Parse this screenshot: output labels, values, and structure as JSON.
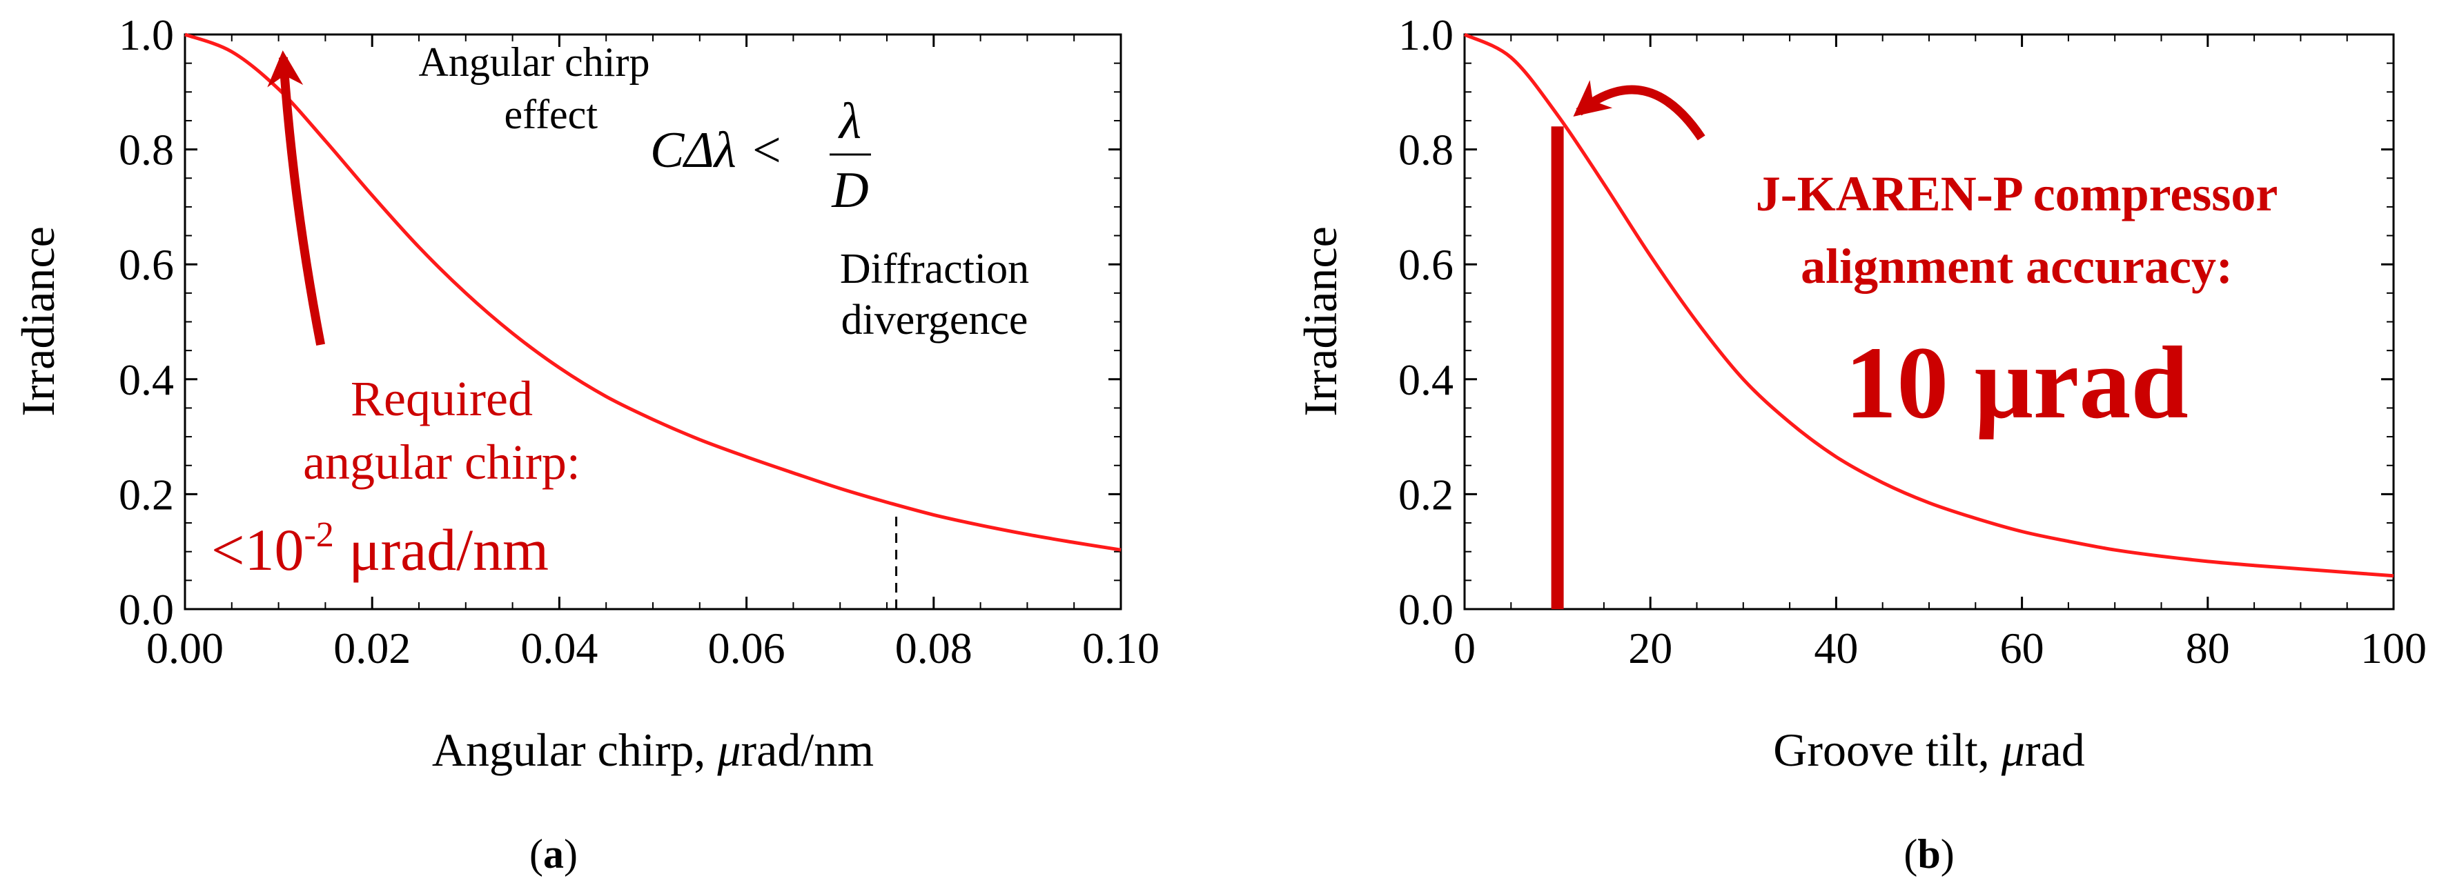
{
  "colors": {
    "curve": "#ff1a1a",
    "annotation": "#cc0000",
    "axis": "#000000"
  },
  "chart_data": [
    {
      "type": "line",
      "panel_label": "a",
      "title": "",
      "xlabel_prefix": "Angular chirp, ",
      "xlabel_symbol": "μ",
      "xlabel_suffix": "rad/nm",
      "ylabel": "Irradiance",
      "xlim": [
        0,
        0.1
      ],
      "ylim": [
        0,
        1
      ],
      "xticks": [
        0.0,
        0.02,
        0.04,
        0.06,
        0.08,
        0.1
      ],
      "xtick_labels": [
        "0.00",
        "0.02",
        "0.04",
        "0.06",
        "0.08",
        "0.10"
      ],
      "yticks": [
        0.0,
        0.2,
        0.4,
        0.6,
        0.8,
        1.0
      ],
      "ytick_labels": [
        "0.0",
        "0.2",
        "0.4",
        "0.6",
        "0.8",
        "1.0"
      ],
      "series": [
        {
          "name": "Irradiance vs angular chirp",
          "x": [
            0.0,
            0.005,
            0.01,
            0.015,
            0.02,
            0.025,
            0.03,
            0.035,
            0.04,
            0.045,
            0.05,
            0.055,
            0.06,
            0.065,
            0.07,
            0.075,
            0.08,
            0.085,
            0.09,
            0.095,
            0.1
          ],
          "y": [
            1.0,
            0.97,
            0.905,
            0.815,
            0.72,
            0.63,
            0.55,
            0.48,
            0.42,
            0.37,
            0.33,
            0.295,
            0.265,
            0.237,
            0.21,
            0.186,
            0.164,
            0.146,
            0.13,
            0.116,
            0.103
          ]
        }
      ],
      "marker_line": {
        "x": 0.076,
        "y_top": 0.165,
        "style": "dashed"
      },
      "arrow": {
        "from": [
          0.0145,
          0.46
        ],
        "to": [
          0.0105,
          0.96
        ]
      },
      "annotations": {
        "angular_chirp_effect_line1": "Angular chirp",
        "angular_chirp_effect_line2": "effect",
        "formula_left": "CΔλ <",
        "formula_numerator": "λ",
        "formula_denominator": "D",
        "diffraction_line1": "Diffraction",
        "diffraction_line2": "divergence",
        "required_line1": "Required",
        "required_line2": "angular chirp:",
        "required_value_prefix": "<10",
        "required_value_exp": "-2",
        "required_value_suffix": " μrad/nm"
      }
    },
    {
      "type": "line",
      "panel_label": "b",
      "title": "",
      "xlabel_prefix": "Groove tilt, ",
      "xlabel_symbol": "μ",
      "xlabel_suffix": "rad",
      "ylabel": "Irradiance",
      "xlim": [
        0,
        100
      ],
      "ylim": [
        0,
        1
      ],
      "xticks": [
        0,
        20,
        40,
        60,
        80,
        100
      ],
      "xtick_labels": [
        "0",
        "20",
        "40",
        "60",
        "80",
        "100"
      ],
      "yticks": [
        0.0,
        0.2,
        0.4,
        0.6,
        0.8,
        1.0
      ],
      "ytick_labels": [
        "0.0",
        "0.2",
        "0.4",
        "0.6",
        "0.8",
        "1.0"
      ],
      "series": [
        {
          "name": "Irradiance vs groove tilt",
          "x": [
            0,
            5,
            10,
            15,
            20,
            25,
            30,
            35,
            40,
            45,
            50,
            55,
            60,
            65,
            70,
            75,
            80,
            85,
            90,
            95,
            100
          ],
          "y": [
            1.0,
            0.96,
            0.86,
            0.74,
            0.615,
            0.5,
            0.4,
            0.325,
            0.265,
            0.22,
            0.185,
            0.158,
            0.135,
            0.118,
            0.103,
            0.092,
            0.083,
            0.076,
            0.07,
            0.064,
            0.058
          ]
        }
      ],
      "bar": {
        "x": 10,
        "value": 0.84
      },
      "arrow": {
        "from": [
          25.5,
          0.82
        ],
        "to": [
          12.3,
          0.865
        ]
      },
      "annotations": {
        "compressor_line1": "J-KAREN-P compressor",
        "compressor_line2": "alignment accuracy:",
        "compressor_value": "10 μrad"
      }
    }
  ]
}
